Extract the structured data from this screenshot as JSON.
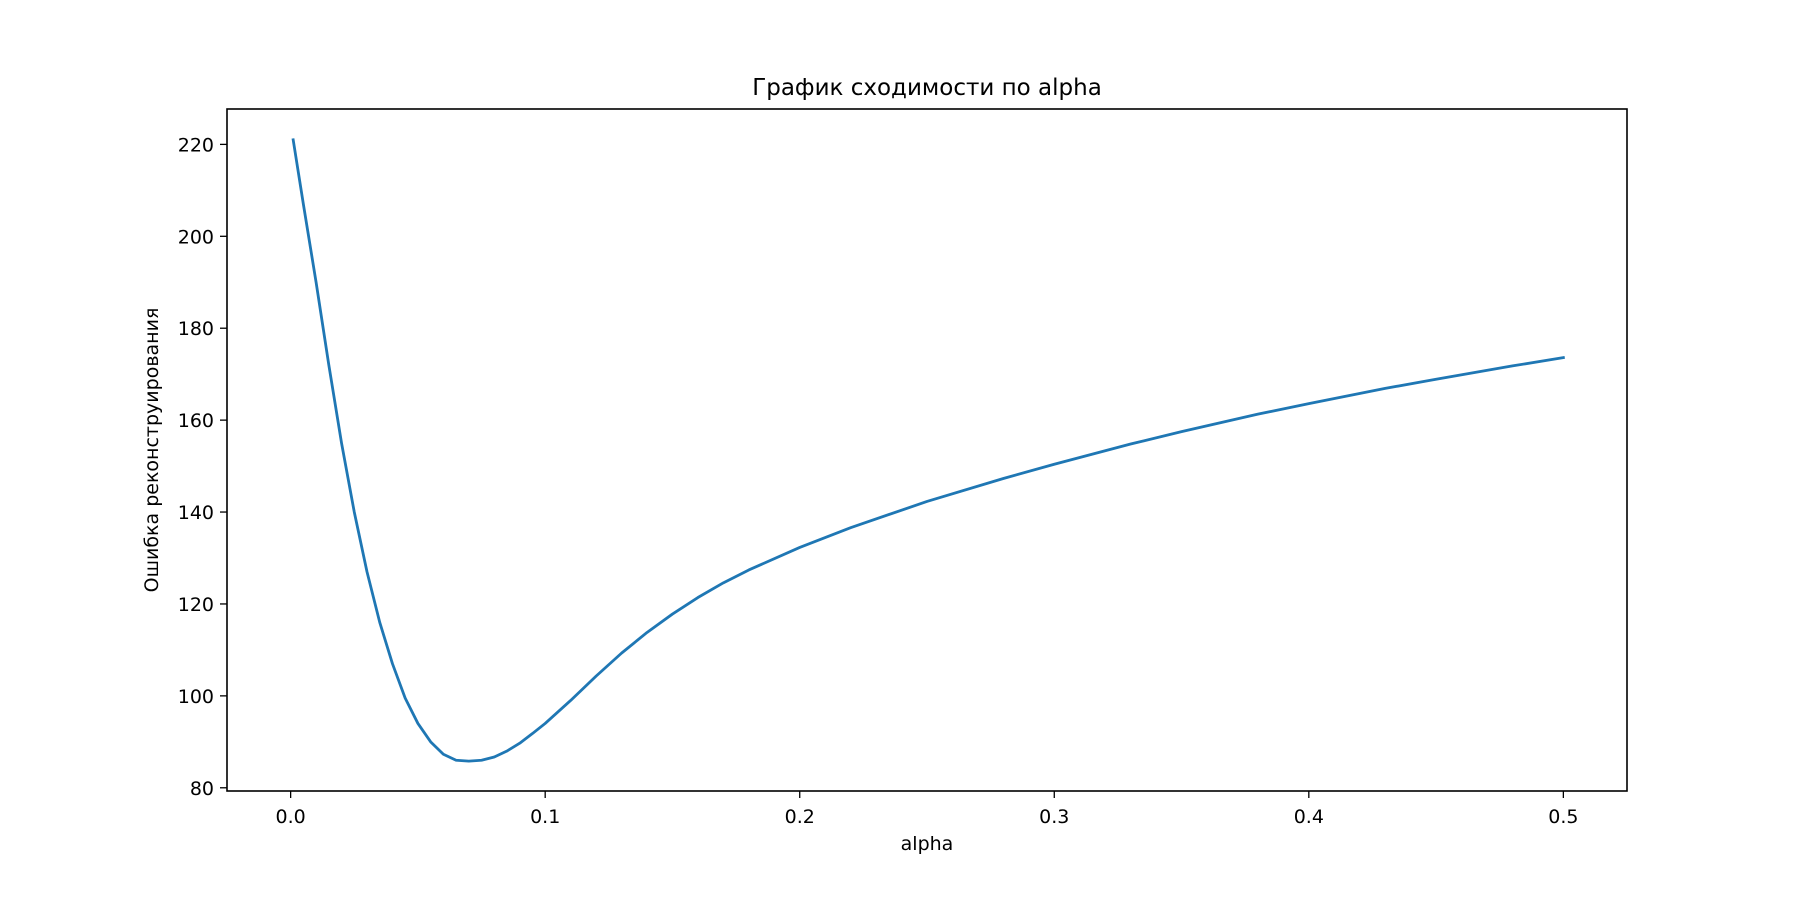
{
  "chart_data": {
    "type": "line",
    "title": "График сходимости по alpha",
    "xlabel": "alpha",
    "ylabel": "Ошибка реконструирования",
    "xlim": [
      -0.025,
      0.525
    ],
    "ylim": [
      79.3,
      227.7
    ],
    "xticks": [
      0.0,
      0.1,
      0.2,
      0.3,
      0.4,
      0.5
    ],
    "xtick_labels": [
      "0.0",
      "0.1",
      "0.2",
      "0.3",
      "0.4",
      "0.5"
    ],
    "yticks": [
      80,
      100,
      120,
      140,
      160,
      180,
      200,
      220
    ],
    "ytick_labels": [
      "80",
      "100",
      "120",
      "140",
      "160",
      "180",
      "200",
      "220"
    ],
    "grid": false,
    "series": [
      {
        "color": "#1f77b4",
        "x": [
          0.001,
          0.005,
          0.01,
          0.015,
          0.02,
          0.025,
          0.03,
          0.035,
          0.04,
          0.045,
          0.05,
          0.055,
          0.06,
          0.065,
          0.07,
          0.075,
          0.08,
          0.085,
          0.09,
          0.095,
          0.1,
          0.11,
          0.12,
          0.13,
          0.14,
          0.15,
          0.16,
          0.17,
          0.18,
          0.2,
          0.22,
          0.25,
          0.28,
          0.3,
          0.33,
          0.35,
          0.38,
          0.4,
          0.43,
          0.45,
          0.48,
          0.5
        ],
        "y": [
          221,
          207,
          190,
          172,
          155,
          140,
          127,
          116,
          107,
          99.5,
          94,
          90,
          87.3,
          86,
          85.8,
          86,
          86.7,
          88,
          89.7,
          91.8,
          94,
          99,
          104.3,
          109.3,
          113.8,
          117.8,
          121.4,
          124.6,
          127.4,
          132.3,
          136.6,
          142.3,
          147.3,
          150.4,
          154.8,
          157.5,
          161.3,
          163.6,
          166.9,
          168.9,
          171.8,
          173.6
        ]
      }
    ]
  }
}
